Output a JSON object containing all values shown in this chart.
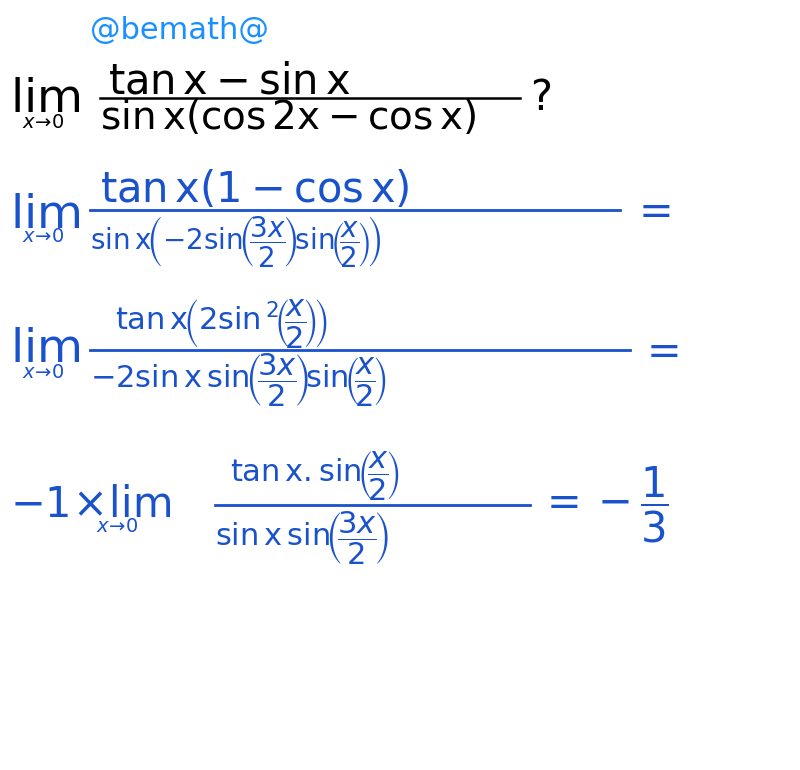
{
  "background_color": "#ffffff",
  "text_color_blue": "#1a52cc",
  "text_color_black": "#000000",
  "header_color": "#1a8fff",
  "figsize": [
    8.0,
    7.7
  ],
  "dpi": 100
}
